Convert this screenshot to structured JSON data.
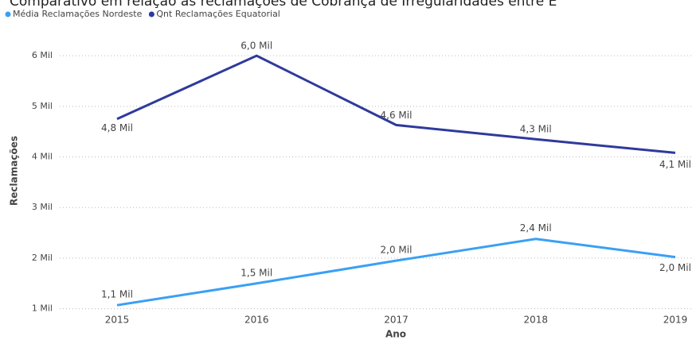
{
  "chart_data": {
    "type": "line",
    "title": "Comparativo em relação às reclamações de Cobrança de Irregularidades entre E",
    "x_label": "Ano",
    "y_label": "Reclamações",
    "categories": [
      "2015",
      "2016",
      "2017",
      "2018",
      "2019"
    ],
    "series": [
      {
        "name": "Média Reclamações Nordeste",
        "color": "#3aa0f5",
        "values": [
          1070,
          1500,
          1950,
          2380,
          2020
        ],
        "value_labels": [
          "1,1 Mil",
          "1,5 Mil",
          "2,0 Mil",
          "2,4 Mil",
          "2,0 Mil"
        ]
      },
      {
        "name": "Qnt Reclamações Equatorial",
        "color": "#2e3a9c",
        "values": [
          4750,
          6000,
          4630,
          4350,
          4080
        ],
        "value_labels": [
          "4,8 Mil",
          "6,0 Mil",
          "4,6 Mil",
          "4,3 Mil",
          "4,1 Mil"
        ]
      }
    ],
    "ylim": [
      900,
      6300
    ],
    "yticks": [
      {
        "value": 1000,
        "label": "1 Mil"
      },
      {
        "value": 2000,
        "label": "2 Mil"
      },
      {
        "value": 3000,
        "label": "3 Mil"
      },
      {
        "value": 4000,
        "label": "4 Mil"
      },
      {
        "value": 5000,
        "label": "5 Mil"
      },
      {
        "value": 6000,
        "label": "6 Mil"
      }
    ],
    "grid": true,
    "legend": "top-left"
  }
}
